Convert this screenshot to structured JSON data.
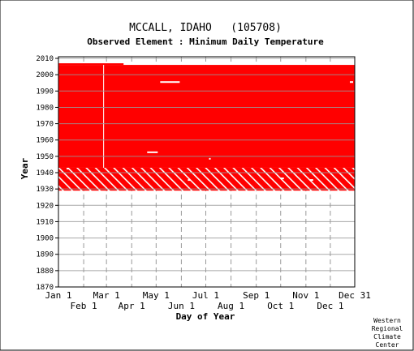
{
  "header": {
    "station": "MCCALL, IDAHO",
    "station_id": "(105708)",
    "subtitle": "Observed Element : Minimum Daily Temperature"
  },
  "credit": [
    "Western",
    "Regional",
    "Climate",
    "Center"
  ],
  "colors": {
    "data": "#ff0000",
    "grid": "#999999",
    "frame": "#000000",
    "background": "#ffffff"
  },
  "chart_data": {
    "type": "heatmap",
    "title": "MCCALL, IDAHO (105708)",
    "subtitle": "Observed Element : Minimum Daily Temperature",
    "xlabel": "Day of Year",
    "ylabel": "Year",
    "xlim": [
      1,
      365
    ],
    "ylim": [
      1870,
      2011
    ],
    "x_ticks_top": [
      {
        "label": "Jan 1",
        "day": 1
      },
      {
        "label": "Mar 1",
        "day": 60
      },
      {
        "label": "May 1",
        "day": 121
      },
      {
        "label": "Jul 1",
        "day": 182
      },
      {
        "label": "Sep 1",
        "day": 244
      },
      {
        "label": "Nov 1",
        "day": 305
      },
      {
        "label": "Dec 31",
        "day": 365
      }
    ],
    "x_ticks_bottom": [
      {
        "label": "Feb 1",
        "day": 32
      },
      {
        "label": "Apr 1",
        "day": 91
      },
      {
        "label": "Jun 1",
        "day": 152
      },
      {
        "label": "Aug 1",
        "day": 213
      },
      {
        "label": "Oct 1",
        "day": 274
      },
      {
        "label": "Dec 1",
        "day": 335
      }
    ],
    "y_ticks": [
      1870,
      1880,
      1890,
      1900,
      1910,
      1920,
      1930,
      1940,
      1950,
      1960,
      1970,
      1980,
      1990,
      2000,
      2010
    ],
    "grid": true,
    "data_records": [
      {
        "day_start": 1,
        "day_end": 365,
        "year_start": 1929,
        "year_end": 1943,
        "pattern": "hatched"
      },
      {
        "day_start": 1,
        "day_end": 365,
        "year_start": 1943,
        "year_end": 2006,
        "pattern": "solid"
      },
      {
        "day_start": 1,
        "day_end": 81,
        "year_start": 2006,
        "year_end": 2007,
        "pattern": "solid"
      }
    ],
    "gaps": [
      {
        "day_start": 126,
        "day_end": 150,
        "year_start": 1995,
        "year_end": 1996
      },
      {
        "day_start": 110,
        "day_end": 123,
        "year_start": 1952,
        "year_end": 1953
      },
      {
        "day_start": 56,
        "day_end": 57,
        "year_start": 1943,
        "year_end": 2006
      },
      {
        "day_start": 186,
        "day_end": 188,
        "year_start": 1948,
        "year_end": 1949
      },
      {
        "day_start": 11,
        "day_end": 14,
        "year_start": 1942,
        "year_end": 1943
      },
      {
        "day_start": 160,
        "day_end": 163,
        "year_start": 1935,
        "year_end": 1936
      },
      {
        "day_start": 274,
        "day_end": 278,
        "year_start": 1936,
        "year_end": 1937
      },
      {
        "day_start": 310,
        "day_end": 314,
        "year_start": 1935,
        "year_end": 1936
      },
      {
        "day_start": 359,
        "day_end": 363,
        "year_start": 1995,
        "year_end": 1996
      }
    ]
  }
}
